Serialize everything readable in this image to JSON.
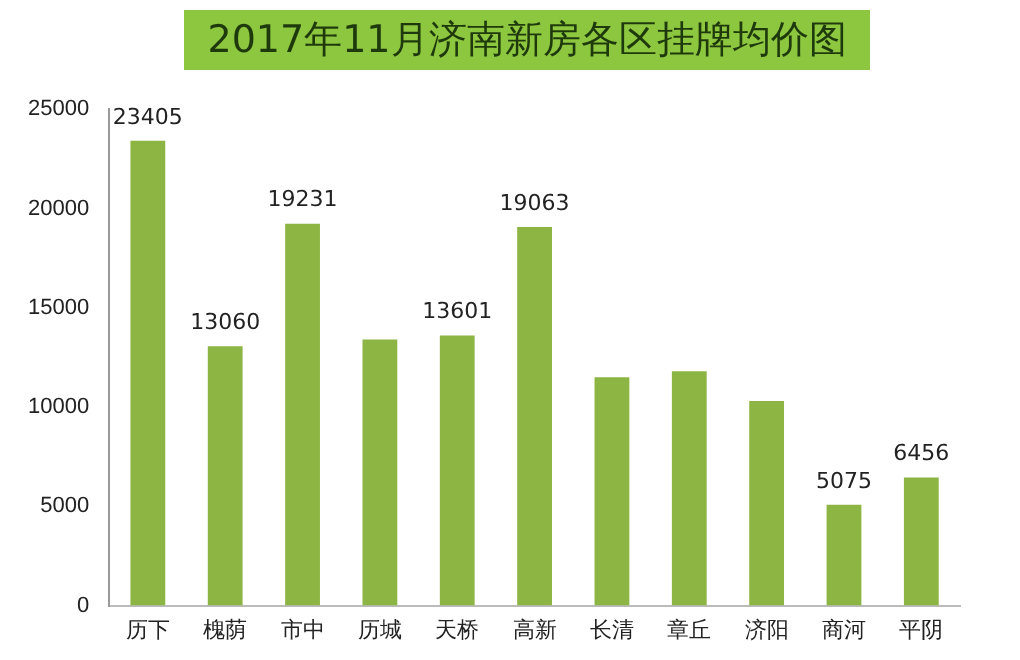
{
  "chart_data": {
    "type": "bar",
    "title": "2017年11月济南新房各区挂牌均价图",
    "categories": [
      "历下",
      "槐荫",
      "市中",
      "历城",
      "天桥",
      "高新",
      "长清",
      "章丘",
      "济阳",
      "商河",
      "平阴"
    ],
    "values": [
      23405,
      13060,
      19231,
      13400,
      13601,
      19063,
      11500,
      11800,
      10300,
      5075,
      6456
    ],
    "value_labels": [
      "23405",
      "13060",
      "19231",
      null,
      "13601",
      "19063",
      null,
      null,
      null,
      "5075",
      "6456"
    ],
    "color": "#8db543",
    "ylim": [
      0,
      25000
    ],
    "yticks": [
      0,
      5000,
      10000,
      15000,
      20000,
      25000
    ],
    "grid": false,
    "legend": false
  }
}
